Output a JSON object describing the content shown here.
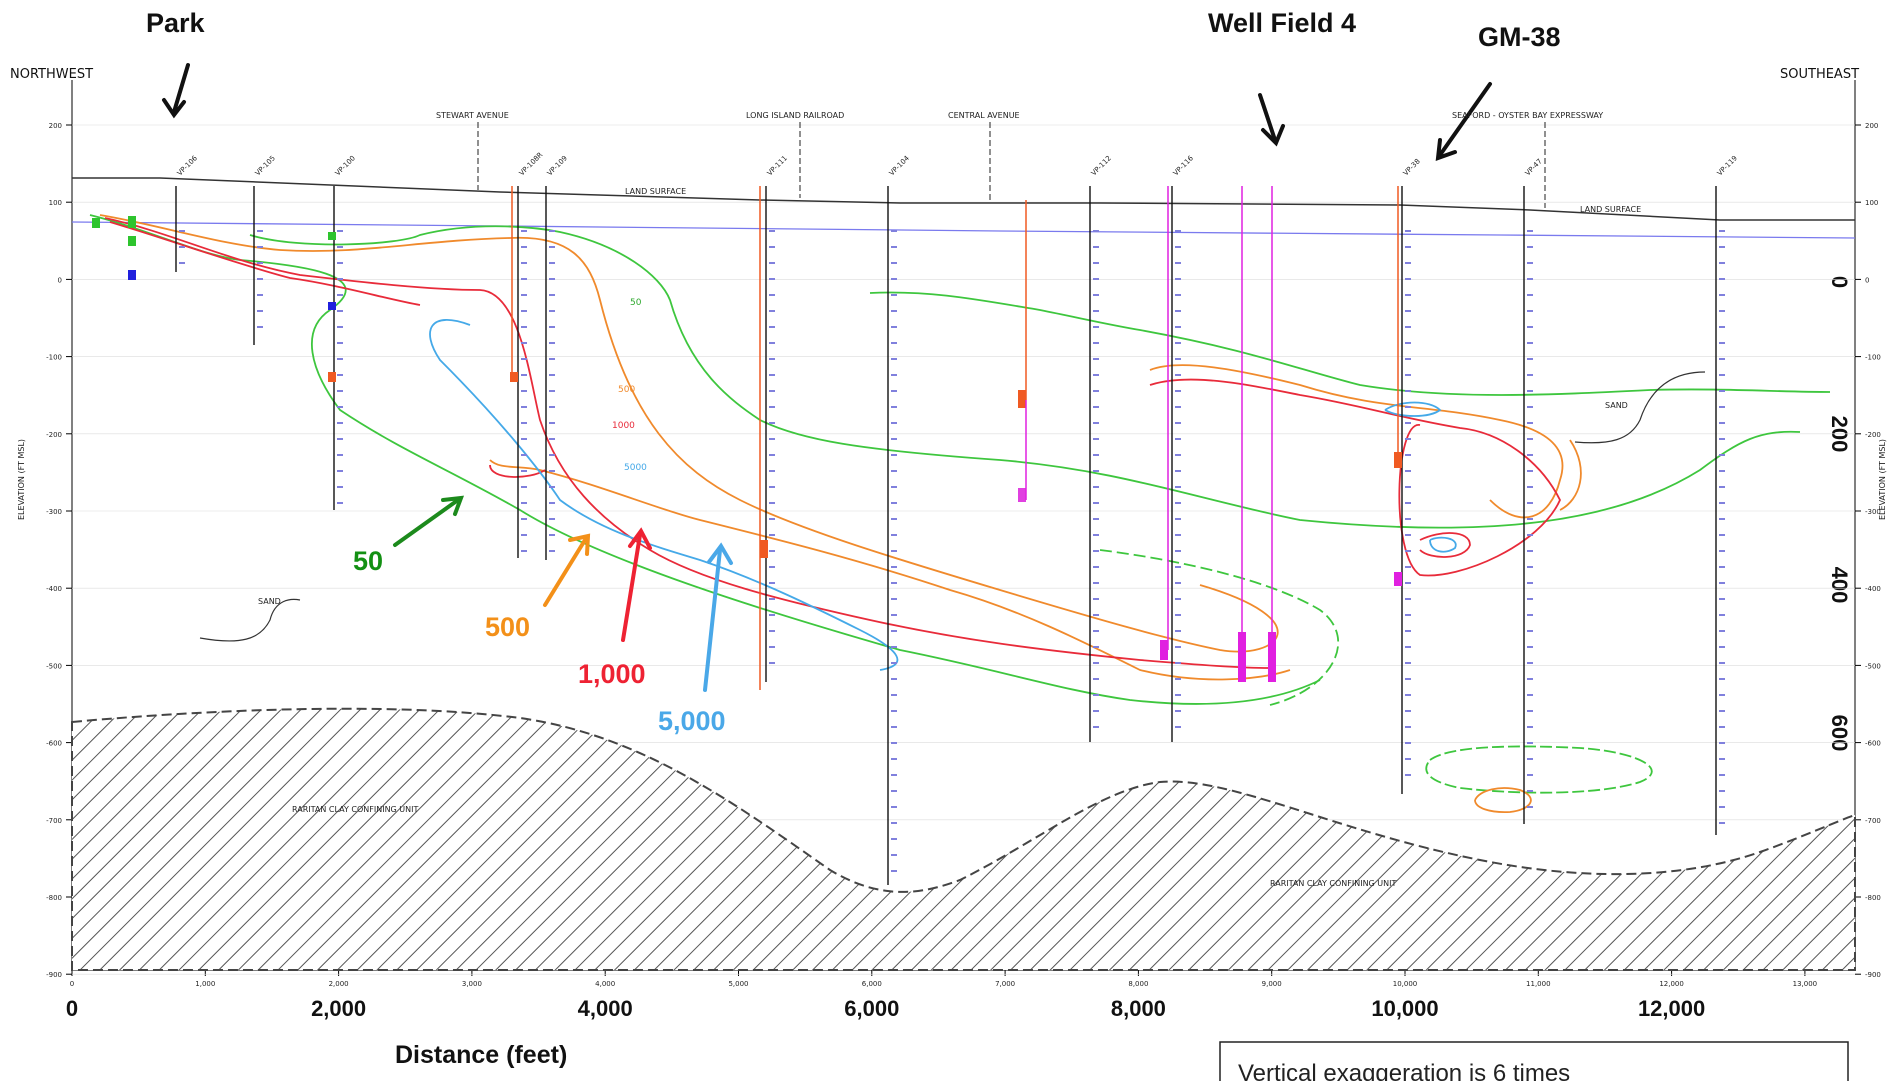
{
  "directions": {
    "left": "NORTHWEST",
    "right": "SOUTHEAST"
  },
  "landmarks": [
    {
      "id": "park",
      "label": "Park"
    },
    {
      "id": "wellfield4",
      "label": "Well Field 4"
    },
    {
      "id": "gm38",
      "label": "GM-38"
    }
  ],
  "roads": [
    "STEWART AVENUE",
    "LONG ISLAND RAILROAD",
    "CENTRAL AVENUE",
    "SEAFORD - OYSTER BAY EXPRESSWAY"
  ],
  "land_surface_label": "LAND SURFACE",
  "sand_label": "SAND",
  "clay_label": "RARITAN CLAY CONFINING UNIT",
  "axis": {
    "y_label": "ELEVATION (FT MSL)",
    "y_ticks": [
      "200",
      "100",
      "0",
      "-100",
      "-200",
      "-300",
      "-400",
      "-500",
      "-600",
      "-700",
      "-800",
      "-900"
    ],
    "x_ticks_small": [
      "0",
      "1,000",
      "2,000",
      "3,000",
      "4,000",
      "5,000",
      "6,000",
      "7,000",
      "8,000",
      "9,000",
      "10,000",
      "11,000",
      "12,000",
      "13,000"
    ],
    "x_ticks_large": [
      "0",
      "2,000",
      "4,000",
      "6,000",
      "8,000",
      "10,000",
      "12,000"
    ],
    "x_label": "Distance (feet)",
    "depth_ticks": [
      "0",
      "200",
      "400",
      "600"
    ]
  },
  "contours": [
    {
      "value": "50",
      "color": "#1a8a1a"
    },
    {
      "value": "500",
      "color": "#f39019"
    },
    {
      "value": "1,000",
      "color": "#ee2233"
    },
    {
      "value": "5,000",
      "color": "#4aa8e8"
    }
  ],
  "contour_inline_labels": [
    "50",
    "500",
    "1000",
    "5000"
  ],
  "wells": [
    "VP-106",
    "VP-105",
    "VP-100",
    "VP-108R",
    "VP-109",
    "VP-111",
    "VP-104",
    "VP-112",
    "VP-116",
    "VP-38",
    "VP-47",
    "VP-119"
  ],
  "note": "Vertical exaggeration is 6 times"
}
